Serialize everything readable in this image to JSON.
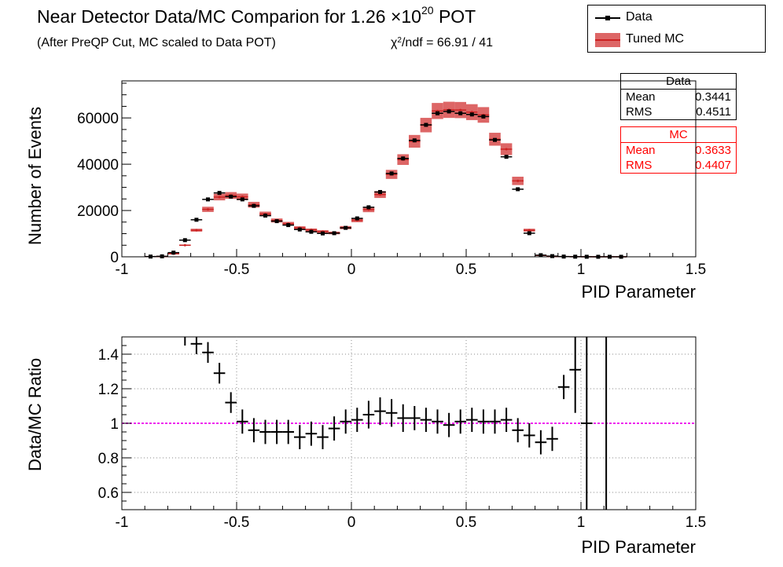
{
  "header": {
    "title_main": "Near Detector Data/MC Comparion for 1.26 ×10",
    "title_exp": "20",
    "title_suffix": " POT",
    "subtitle": "(After PreQP Cut, MC scaled to Data POT)",
    "chi2_prefix": "χ",
    "chi2_exp": "2",
    "chi2_rest": "/ndf = 66.91 / 41"
  },
  "legend": {
    "data_label": "Data",
    "mc_label": "Tuned MC"
  },
  "stats": {
    "data": {
      "title": "Data",
      "mean_label": "Mean",
      "mean": "0.3441",
      "rms_label": "RMS",
      "rms": "0.4511"
    },
    "mc": {
      "title": "MC",
      "mean_label": "Mean",
      "mean": "0.3633",
      "rms_label": "RMS",
      "rms": "0.4407"
    }
  },
  "colors": {
    "data": "#000000",
    "mc": "#cc2222",
    "mc_band": "#dd6666",
    "unity": "#ee22ee"
  },
  "chart_data": [
    {
      "type": "bar",
      "xlabel": "PID Parameter",
      "ylabel": "Number of Events",
      "xlim": [
        -1,
        1.5
      ],
      "ylim": [
        0,
        76000
      ],
      "xticks": [
        "-1",
        "-0.5",
        "0",
        "0.5",
        "1",
        "1.5"
      ],
      "yticks": [
        "0",
        "20000",
        "40000",
        "60000"
      ],
      "bin_width": 0.05,
      "bin_centers": [
        -0.875,
        -0.825,
        -0.775,
        -0.725,
        -0.675,
        -0.625,
        -0.575,
        -0.525,
        -0.475,
        -0.425,
        -0.375,
        -0.325,
        -0.275,
        -0.225,
        -0.175,
        -0.125,
        -0.075,
        -0.025,
        0.025,
        0.075,
        0.125,
        0.175,
        0.225,
        0.275,
        0.325,
        0.375,
        0.425,
        0.475,
        0.525,
        0.575,
        0.625,
        0.675,
        0.725,
        0.775,
        0.825,
        0.875,
        0.925,
        0.975,
        1.025,
        1.075,
        1.125,
        1.175
      ],
      "series": [
        {
          "name": "Data",
          "values": [
            100,
            200,
            1800,
            7200,
            16000,
            24800,
            27600,
            26000,
            24800,
            22000,
            17800,
            15400,
            13700,
            11800,
            10800,
            10100,
            10200,
            12500,
            16600,
            21400,
            28000,
            36000,
            42500,
            50300,
            57000,
            62000,
            62800,
            62000,
            61500,
            60600,
            50500,
            43200,
            29200,
            10200,
            700,
            300,
            100,
            50,
            20,
            10,
            10,
            10
          ]
        },
        {
          "name": "Tuned MC",
          "values": [
            100,
            150,
            1300,
            5000,
            11500,
            20500,
            25800,
            26500,
            25900,
            22500,
            18500,
            15700,
            14300,
            12500,
            11600,
            10900,
            10300,
            12600,
            15800,
            20400,
            26900,
            35600,
            42000,
            49900,
            56900,
            63000,
            63500,
            63400,
            62500,
            61300,
            50800,
            46500,
            32800,
            11500,
            600,
            200,
            100,
            50,
            20,
            10,
            10,
            10
          ]
        }
      ]
    },
    {
      "type": "scatter",
      "xlabel": "PID Parameter",
      "ylabel": "Data/MC Ratio",
      "xlim": [
        -1,
        1.5
      ],
      "ylim": [
        0.5,
        1.5
      ],
      "xticks": [
        "-1",
        "-0.5",
        "0",
        "0.5",
        "1",
        "1.5"
      ],
      "yticks": [
        "0.6",
        "0.8",
        "1",
        "1.2",
        "1.4"
      ],
      "reference_line": 1.0,
      "x": [
        -0.725,
        -0.675,
        -0.625,
        -0.575,
        -0.525,
        -0.475,
        -0.425,
        -0.375,
        -0.325,
        -0.275,
        -0.225,
        -0.175,
        -0.125,
        -0.075,
        -0.025,
        0.025,
        0.075,
        0.125,
        0.175,
        0.225,
        0.275,
        0.325,
        0.375,
        0.425,
        0.475,
        0.525,
        0.575,
        0.625,
        0.675,
        0.725,
        0.775,
        0.825,
        0.875,
        0.925,
        0.975,
        1.025,
        1.075,
        1.125
      ],
      "y": [
        1.51,
        1.46,
        1.41,
        1.29,
        1.12,
        1.01,
        0.96,
        0.95,
        0.95,
        0.95,
        0.92,
        0.94,
        0.92,
        0.97,
        1.01,
        1.02,
        1.05,
        1.07,
        1.06,
        1.03,
        1.03,
        1.02,
        1.01,
        0.99,
        1.01,
        1.02,
        1.01,
        1.01,
        1.02,
        0.96,
        0.93,
        0.89,
        0.91,
        1.21,
        1.31,
        1.0,
        1.0,
        1.0
      ],
      "yerr": [
        0.06,
        0.06,
        0.06,
        0.06,
        0.06,
        0.07,
        0.07,
        0.07,
        0.07,
        0.07,
        0.07,
        0.07,
        0.07,
        0.07,
        0.07,
        0.07,
        0.08,
        0.08,
        0.08,
        0.08,
        0.07,
        0.07,
        0.07,
        0.07,
        0.07,
        0.07,
        0.07,
        0.07,
        0.07,
        0.07,
        0.07,
        0.07,
        0.07,
        0.07,
        0.25,
        0.6,
        0,
        0
      ]
    }
  ]
}
